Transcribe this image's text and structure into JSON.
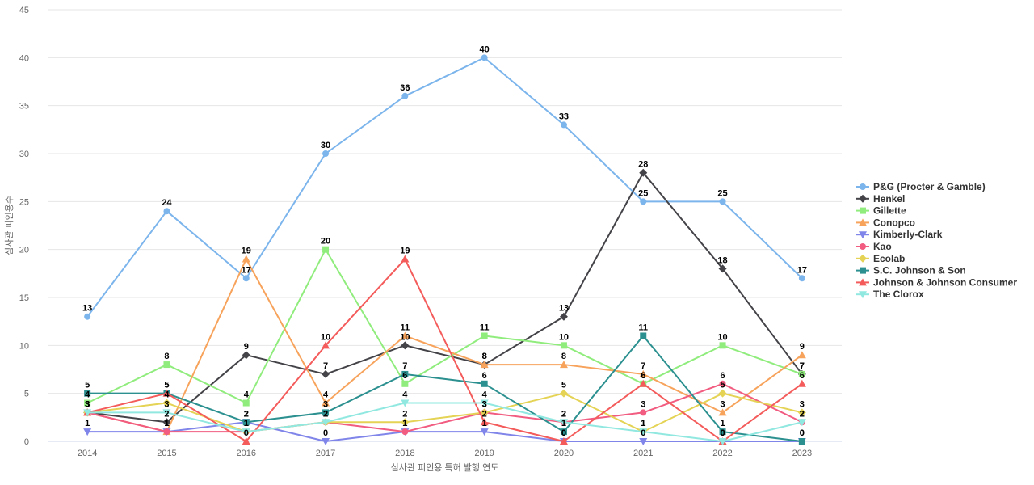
{
  "chart_data": {
    "type": "line",
    "title": "",
    "xlabel": "심사관 피인용 특허 발행 연도",
    "ylabel": "심사관 피인용수",
    "ylim": [
      0,
      45
    ],
    "ytick_interval": 5,
    "yticks": [
      0,
      5,
      10,
      15,
      20,
      25,
      30,
      35,
      40,
      45
    ],
    "grid": "horizontal-only",
    "legend_position": "right",
    "data_labels": true,
    "categories": [
      "2014",
      "2015",
      "2016",
      "2017",
      "2018",
      "2019",
      "2020",
      "2021",
      "2022",
      "2023"
    ],
    "series": [
      {
        "name": "P&G (Procter & Gamble)",
        "color": "#7CB5EC",
        "marker": "circle",
        "values": [
          13,
          24,
          17,
          30,
          36,
          40,
          33,
          25,
          25,
          17
        ]
      },
      {
        "name": "Henkel",
        "color": "#434348",
        "marker": "diamond",
        "values": [
          3,
          2,
          9,
          7,
          10,
          8,
          13,
          28,
          18,
          7
        ]
      },
      {
        "name": "Gillette",
        "color": "#90ED7D",
        "marker": "square",
        "values": [
          4,
          8,
          4,
          20,
          6,
          11,
          10,
          6,
          10,
          7
        ]
      },
      {
        "name": "Conopco",
        "color": "#F7A35C",
        "marker": "triangle",
        "values": [
          3,
          1,
          19,
          4,
          11,
          8,
          8,
          7,
          3,
          9
        ]
      },
      {
        "name": "Kimberly-Clark",
        "color": "#8085E9",
        "marker": "triangle-down",
        "values": [
          1,
          1,
          2,
          0,
          1,
          1,
          0,
          0,
          0,
          0
        ]
      },
      {
        "name": "Kao",
        "color": "#F15C80",
        "marker": "circle",
        "values": [
          3,
          1,
          1,
          2,
          1,
          3,
          2,
          3,
          6,
          2
        ]
      },
      {
        "name": "Ecolab",
        "color": "#E4D354",
        "marker": "diamond",
        "values": [
          3,
          4,
          1,
          2,
          2,
          3,
          5,
          1,
          5,
          3
        ]
      },
      {
        "name": "S.C. Johnson & Son",
        "color": "#2B908F",
        "marker": "square",
        "values": [
          5,
          5,
          2,
          3,
          7,
          6,
          1,
          11,
          1,
          0
        ]
      },
      {
        "name": "Johnson & Johnson Consumer",
        "color": "#F45B5B",
        "marker": "triangle",
        "values": [
          3,
          5,
          0,
          10,
          19,
          2,
          0,
          6,
          0,
          6
        ]
      },
      {
        "name": "The Clorox",
        "color": "#91E8E1",
        "marker": "triangle-down",
        "values": [
          3,
          3,
          1,
          2,
          4,
          4,
          2,
          1,
          0,
          2
        ]
      }
    ],
    "style": {
      "grid_color": "#e6e6e6",
      "axis_line_color": "#ccd6eb",
      "tick_label_color": "#666666",
      "axis_title_color": "#666666",
      "legend_text_color": "#333333",
      "data_label_color": "#000000",
      "background": "#ffffff"
    }
  }
}
